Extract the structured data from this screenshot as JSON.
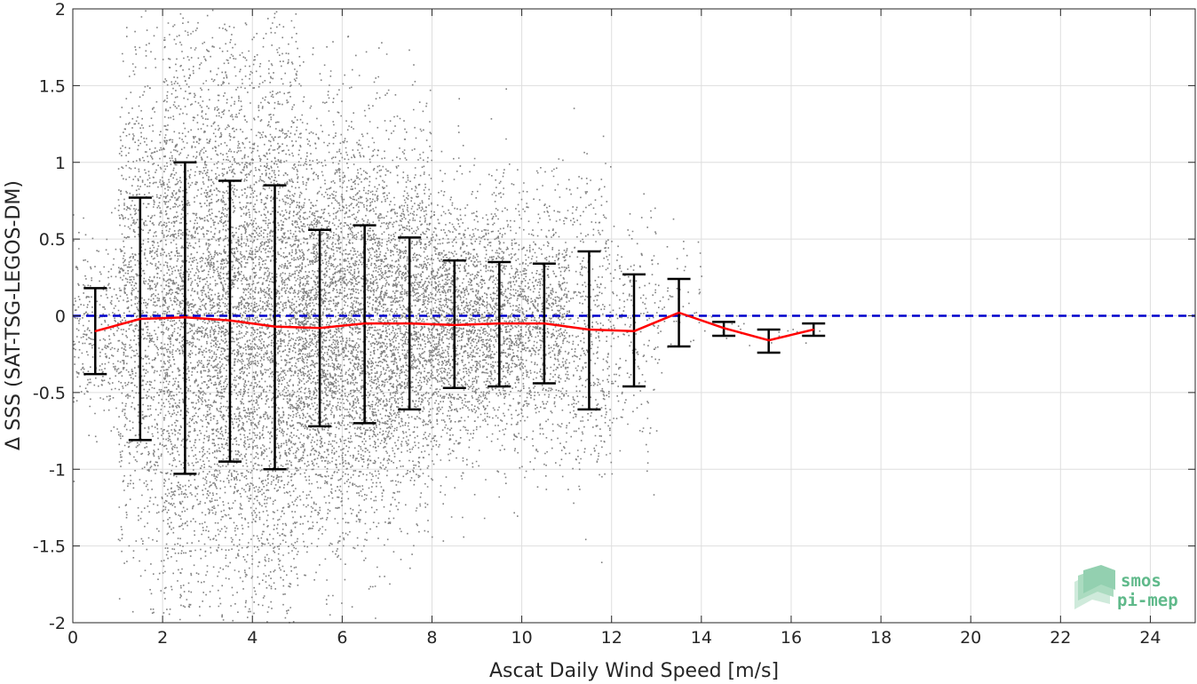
{
  "chart_data": {
    "type": "scatter",
    "title": "",
    "xlabel": "Ascat Daily Wind Speed [m/s]",
    "ylabel": "Δ SSS (SAT-TSG-LEGOS-DM)",
    "xlim": [
      0,
      25
    ],
    "ylim": [
      -2,
      2
    ],
    "grid": true,
    "x_ticks": [
      0,
      2,
      4,
      6,
      8,
      10,
      12,
      14,
      16,
      18,
      20,
      22,
      24
    ],
    "y_ticks": [
      -2,
      -1.5,
      -1,
      -0.5,
      0,
      0.5,
      1,
      1.5,
      2
    ],
    "x_tick_labels": [
      "0",
      "2",
      "4",
      "6",
      "8",
      "10",
      "12",
      "14",
      "16",
      "18",
      "20",
      "22",
      "24"
    ],
    "y_tick_labels": [
      "-2",
      "-1.5",
      "-1",
      "-0.5",
      "0",
      "0.5",
      "1",
      "1.5",
      "2"
    ],
    "scatter_color": "#808080",
    "mean_color": "#ff0000",
    "zero_line_color": "#0000cc",
    "errorbar_color": "#000000",
    "zero_line": 0,
    "bins": [
      {
        "x": 0.5,
        "mean": -0.1,
        "low": -0.38,
        "high": 0.18
      },
      {
        "x": 1.5,
        "mean": -0.02,
        "low": -0.81,
        "high": 0.77
      },
      {
        "x": 2.5,
        "mean": -0.01,
        "low": -1.03,
        "high": 1.0
      },
      {
        "x": 3.5,
        "mean": -0.03,
        "low": -0.95,
        "high": 0.88
      },
      {
        "x": 4.5,
        "mean": -0.07,
        "low": -1.0,
        "high": 0.85
      },
      {
        "x": 5.5,
        "mean": -0.08,
        "low": -0.72,
        "high": 0.56
      },
      {
        "x": 6.5,
        "mean": -0.05,
        "low": -0.7,
        "high": 0.59
      },
      {
        "x": 7.5,
        "mean": -0.05,
        "low": -0.61,
        "high": 0.51
      },
      {
        "x": 8.5,
        "mean": -0.06,
        "low": -0.47,
        "high": 0.36
      },
      {
        "x": 9.5,
        "mean": -0.05,
        "low": -0.46,
        "high": 0.35
      },
      {
        "x": 10.5,
        "mean": -0.05,
        "low": -0.44,
        "high": 0.34
      },
      {
        "x": 11.5,
        "mean": -0.09,
        "low": -0.61,
        "high": 0.42
      },
      {
        "x": 12.5,
        "mean": -0.1,
        "low": -0.46,
        "high": 0.27
      },
      {
        "x": 13.5,
        "mean": 0.02,
        "low": -0.2,
        "high": 0.24
      },
      {
        "x": 14.5,
        "mean": -0.08,
        "low": -0.13,
        "high": -0.04
      },
      {
        "x": 15.5,
        "mean": -0.16,
        "low": -0.24,
        "high": -0.09
      },
      {
        "x": 16.5,
        "mean": -0.09,
        "low": -0.13,
        "high": -0.05
      }
    ]
  },
  "watermark": {
    "line1": "smos",
    "line2": "pi-mep",
    "color": "#5fb98a"
  }
}
